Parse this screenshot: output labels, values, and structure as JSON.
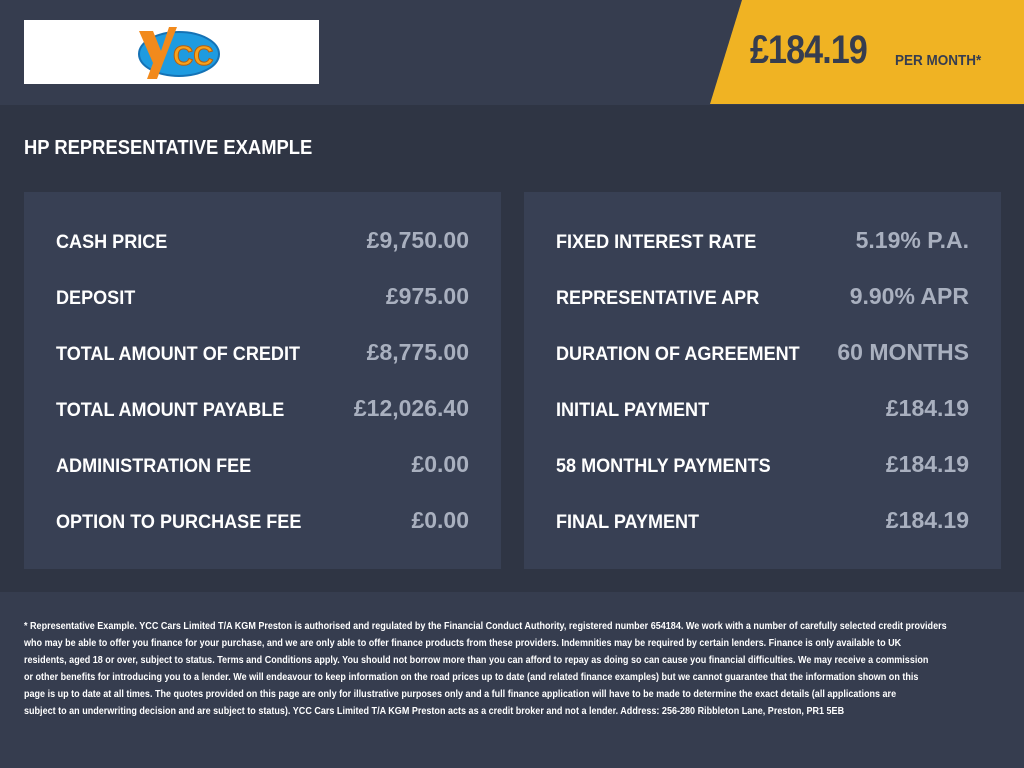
{
  "logo": {
    "text": "YCC"
  },
  "banner": {
    "price": "£184.19",
    "per_month": "PER MONTH*",
    "color": "#f0b323"
  },
  "title": "HP REPRESENTATIVE EXAMPLE",
  "left_panel": [
    {
      "label": "CASH PRICE",
      "value": "£9,750.00"
    },
    {
      "label": "DEPOSIT",
      "value": "£975.00"
    },
    {
      "label": "TOTAL AMOUNT OF CREDIT",
      "value": "£8,775.00"
    },
    {
      "label": "TOTAL AMOUNT PAYABLE",
      "value": "£12,026.40"
    },
    {
      "label": "ADMINISTRATION FEE",
      "value": "£0.00"
    },
    {
      "label": "OPTION TO PURCHASE FEE",
      "value": "£0.00"
    }
  ],
  "right_panel": [
    {
      "label": "FIXED INTEREST RATE",
      "value": "5.19% P.A."
    },
    {
      "label": "REPRESENTATIVE APR",
      "value": "9.90% APR"
    },
    {
      "label": "DURATION OF AGREEMENT",
      "value": "60 MONTHS"
    },
    {
      "label": "INITIAL PAYMENT",
      "value": "£184.19"
    },
    {
      "label": "58 MONTHLY PAYMENTS",
      "value": "£184.19"
    },
    {
      "label": "FINAL PAYMENT",
      "value": "£184.19"
    }
  ],
  "disclaimer": [
    "* Representative Example. YCC Cars Limited T/A KGM Preston  is authorised and regulated by the Financial Conduct Authority, registered number 654184. We work with a number of carefully selected credit providers",
    "who may be able to offer you finance for your purchase, and we are only able to offer finance products from these providers. Indemnities may be required by certain lenders. Finance is only available to UK",
    "residents, aged 18 or over, subject to status. Terms and Conditions apply. You should not borrow more than you can afford to repay as doing so can cause you financial difficulties. We may receive a commission",
    "or other benefits for introducing you to a lender. We will endeavour to keep information on the road prices up to date (and related finance examples) but we cannot guarantee that the information shown on this",
    "page is up to date at all times. The quotes provided on this page are only for illustrative purposes only and a full finance application will have to be made to determine the exact details (all applications are",
    "subject to an underwriting decision and are subject to status). YCC Cars Limited T/A KGM Preston  acts as a credit broker and not a lender. Address: 256-280 Ribbleton Lane, Preston, PR1 5EB"
  ]
}
